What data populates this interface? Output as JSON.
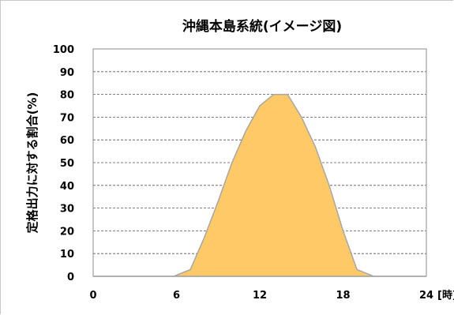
{
  "chart_data": {
    "type": "area",
    "title": "沖縄本島系統(イメージ図)",
    "ylabel": "定格出力に対する割合(%)",
    "xlabel": "",
    "x_unit_label": "[時]",
    "x_ticks": [
      "0",
      "6",
      "12",
      "18",
      "24"
    ],
    "y_ticks": [
      "0",
      "10",
      "20",
      "30",
      "40",
      "50",
      "60",
      "70",
      "80",
      "90",
      "100"
    ],
    "xlim": [
      0,
      24
    ],
    "ylim": [
      0,
      100
    ],
    "grid": "horizontal-dashed",
    "fill_color": "#FFC965",
    "line_color": "#A6A6A6",
    "x": [
      0,
      5.8,
      6,
      7,
      8,
      9,
      10,
      11,
      12,
      13,
      14,
      15,
      16,
      17,
      18,
      19,
      20,
      20.2,
      24
    ],
    "values": [
      0,
      0,
      0.5,
      3,
      17,
      33,
      50,
      64,
      75,
      80,
      80,
      70,
      57,
      40,
      20,
      3,
      0.5,
      0,
      0
    ]
  }
}
